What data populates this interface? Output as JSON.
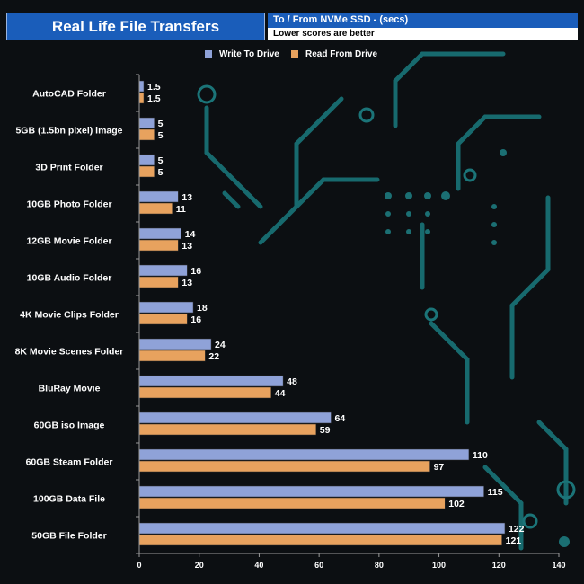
{
  "header": {
    "title": "Real Life File Transfers",
    "subtitle": "To /  From NVMe  SSD - (secs)",
    "note": "Lower scores are better"
  },
  "colors": {
    "write": "#8fa2d8",
    "read": "#e8a25e",
    "title_bg": "#1a5dba",
    "background": "#0c0f12",
    "circuit": "#176a6e"
  },
  "chart_data": {
    "type": "bar",
    "orientation": "horizontal",
    "title": "Real Life File Transfers",
    "subtitle": "To /  From NVMe  SSD - (secs)",
    "note": "Lower scores are better",
    "categories": [
      "AutoCAD Folder",
      "5GB (1.5bn pixel) image",
      "3D Print Folder",
      "10GB Photo Folder",
      "12GB Movie Folder",
      "10GB Audio Folder",
      "4K Movie Clips Folder",
      "8K Movie Scenes Folder",
      "BluRay Movie",
      "60GB iso Image",
      "60GB Steam Folder",
      "100GB Data File",
      "50GB File Folder"
    ],
    "series": [
      {
        "name": "Write To  Drive",
        "values": [
          1.5,
          5,
          5,
          13,
          14,
          16,
          18,
          24,
          48,
          64,
          110,
          115,
          122
        ]
      },
      {
        "name": "Read From  Drive",
        "values": [
          1.5,
          5,
          5,
          11,
          13,
          13,
          16,
          22,
          44,
          59,
          97,
          102,
          121
        ]
      }
    ],
    "xlim": [
      0,
      140
    ],
    "xticks": [
      0,
      20,
      40,
      60,
      80,
      100,
      120,
      140
    ],
    "legend": "top-center",
    "grid": false
  }
}
